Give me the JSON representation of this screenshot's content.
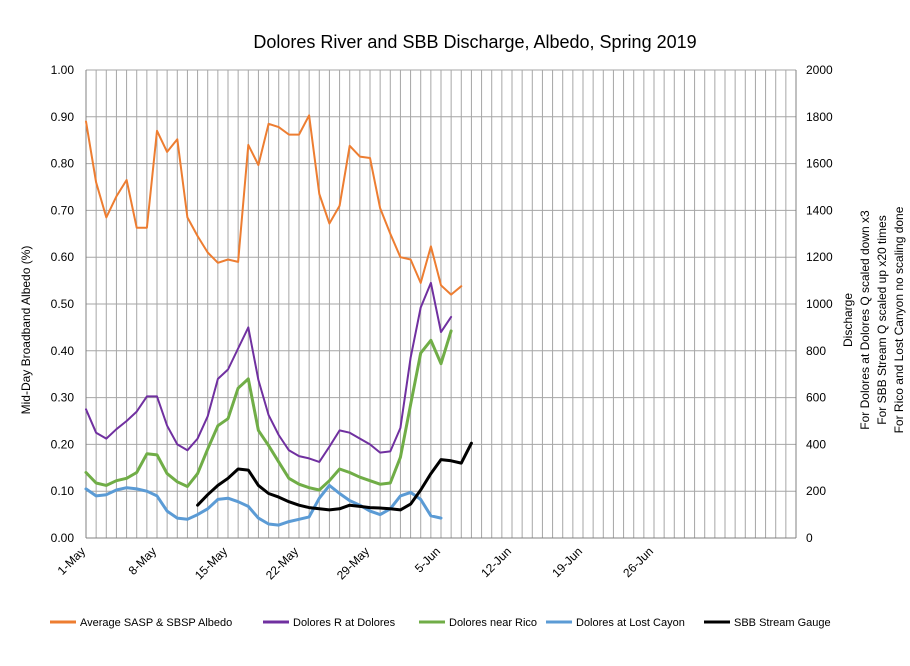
{
  "chart_data": {
    "type": "line",
    "title": "Dolores River and SBB Discharge, Albedo,  Spring 2019",
    "ylabel": "Mid-Day Broadband Albedo (%)",
    "y2label_lines": [
      "Discharge",
      "For Dolores at Dolores Q scaled down x3",
      "For SBB Stream Q scaled up x20 times",
      "For Rico and Lost Canyon no scaling done"
    ],
    "ylim": [
      0,
      1
    ],
    "y2lim": [
      0,
      2000
    ],
    "xlim_days": [
      0,
      70
    ],
    "y_ticks": [
      "0.00",
      "0.10",
      "0.20",
      "0.30",
      "0.40",
      "0.50",
      "0.60",
      "0.70",
      "0.80",
      "0.90",
      "1.00"
    ],
    "y2_ticks": [
      "0",
      "200",
      "400",
      "600",
      "800",
      "1000",
      "1200",
      "1400",
      "1600",
      "1800",
      "2000"
    ],
    "x_ticks": [
      {
        "day": 0,
        "label": "1-May"
      },
      {
        "day": 7,
        "label": "8-May"
      },
      {
        "day": 14,
        "label": "15-May"
      },
      {
        "day": 21,
        "label": "22-May"
      },
      {
        "day": 28,
        "label": "29-May"
      },
      {
        "day": 35,
        "label": "5-Jun"
      },
      {
        "day": 42,
        "label": "12-Jun"
      },
      {
        "day": 49,
        "label": "19-Jun"
      },
      {
        "day": 56,
        "label": "26-Jun"
      }
    ],
    "legend_position": "bottom",
    "series": [
      {
        "name": "Average SASP & SBSP Albedo",
        "color": "#ED7D31",
        "axis": "left",
        "start_day": 0,
        "values": [
          0.89,
          0.76,
          0.685,
          0.73,
          0.765,
          0.663,
          0.663,
          0.87,
          0.825,
          0.852,
          0.685,
          0.645,
          0.61,
          0.588,
          0.595,
          0.59,
          0.84,
          0.797,
          0.885,
          0.878,
          0.862,
          0.862,
          0.903,
          0.735,
          0.672,
          0.71,
          0.838,
          0.815,
          0.812,
          0.705,
          0.65,
          0.6,
          0.595,
          0.545,
          0.623,
          0.54,
          0.52,
          0.538
        ]
      },
      {
        "name": "Dolores R at Dolores",
        "color": "#7030A0",
        "axis": "right",
        "start_day": 0,
        "values": [
          550,
          450,
          425,
          465,
          500,
          540,
          605,
          605,
          480,
          400,
          375,
          425,
          520,
          680,
          720,
          810,
          900,
          675,
          525,
          440,
          375,
          350,
          340,
          325,
          390,
          460,
          450,
          425,
          400,
          365,
          370,
          470,
          770,
          985,
          1090,
          880,
          945
        ]
      },
      {
        "name": "Dolores near Rico",
        "color": "#70AD47",
        "axis": "right",
        "start_day": 0,
        "values": [
          280,
          235,
          225,
          245,
          255,
          280,
          360,
          355,
          275,
          240,
          220,
          275,
          380,
          480,
          510,
          640,
          680,
          460,
          395,
          325,
          255,
          230,
          215,
          205,
          245,
          295,
          280,
          260,
          245,
          230,
          235,
          345,
          570,
          790,
          845,
          745,
          885
        ]
      },
      {
        "name": "Dolores at Lost Cayon",
        "color": "#5B9BD5",
        "axis": "right",
        "start_day": 0,
        "values": [
          210,
          180,
          185,
          205,
          215,
          210,
          200,
          180,
          115,
          85,
          80,
          100,
          125,
          165,
          170,
          155,
          135,
          85,
          60,
          55,
          70,
          80,
          90,
          170,
          225,
          190,
          160,
          140,
          115,
          100,
          125,
          180,
          195,
          165,
          95,
          85
        ]
      },
      {
        "name": "SBB Stream Gauge",
        "color": "#000000",
        "axis": "right",
        "start_day": 11,
        "values": [
          140,
          185,
          225,
          255,
          295,
          290,
          225,
          190,
          175,
          155,
          140,
          130,
          125,
          120,
          125,
          140,
          135,
          130,
          128,
          125,
          120,
          145,
          205,
          275,
          335,
          330,
          320,
          405
        ]
      }
    ]
  }
}
